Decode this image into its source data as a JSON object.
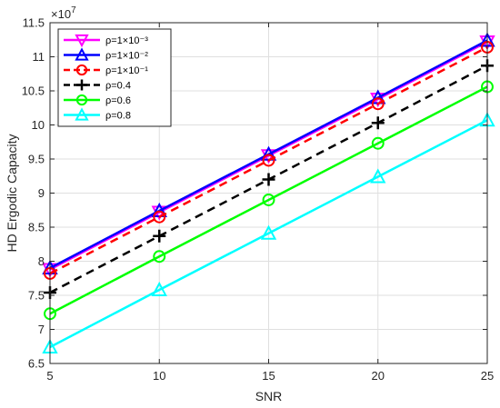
{
  "chart_data": {
    "type": "line",
    "xlabel": "SNR",
    "ylabel": "HD Ergodic Capacity",
    "y_multiplier_label": "×10",
    "y_multiplier_exp": "7",
    "xlim": [
      5,
      25
    ],
    "ylim": [
      6.5,
      11.5
    ],
    "x_ticks": [
      5,
      10,
      15,
      20,
      25
    ],
    "y_ticks": [
      "6.5",
      "7",
      "7.5",
      "8",
      "8.5",
      "9",
      "9.5",
      "10",
      "10.5",
      "11",
      "11.5"
    ],
    "grid": true,
    "legend_position": "top-left",
    "x": [
      5,
      10,
      15,
      20,
      25
    ],
    "series": [
      {
        "name": "ρ=1×10⁻³",
        "values": [
          7.88,
          8.72,
          9.55,
          10.38,
          11.22
        ],
        "color": "#FF00FF",
        "line": "solid",
        "marker": "triangle-down"
      },
      {
        "name": "ρ=1×10⁻²",
        "values": [
          7.9,
          8.74,
          9.57,
          10.4,
          11.24
        ],
        "color": "#0000FF",
        "line": "solid",
        "marker": "triangle-up"
      },
      {
        "name": "ρ=1×10⁻¹",
        "values": [
          7.82,
          8.65,
          9.48,
          10.31,
          11.14
        ],
        "color": "#FF0000",
        "line": "dashed",
        "marker": "circle"
      },
      {
        "name": "ρ=0.4",
        "values": [
          7.54,
          8.37,
          9.2,
          10.03,
          10.87
        ],
        "color": "#000000",
        "line": "dashed",
        "marker": "plus"
      },
      {
        "name": "ρ=0.6",
        "values": [
          7.23,
          8.07,
          8.9,
          9.73,
          10.56
        ],
        "color": "#00FF00",
        "line": "solid",
        "marker": "circle"
      },
      {
        "name": "ρ=0.8",
        "values": [
          6.74,
          7.58,
          8.41,
          9.24,
          10.07
        ],
        "color": "#00FFFF",
        "line": "solid",
        "marker": "triangle-up"
      }
    ]
  }
}
